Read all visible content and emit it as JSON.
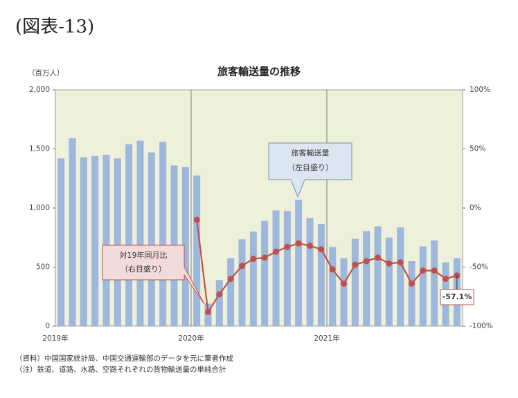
{
  "heading": "(図表-13)",
  "chart_data": {
    "type": "bar_line",
    "title": "旅客輸送量の推移",
    "y_label": "（百万人）",
    "categories": [
      "2019年",
      null,
      null,
      null,
      null,
      null,
      null,
      null,
      null,
      null,
      null,
      null,
      "2020年",
      null,
      null,
      null,
      null,
      null,
      null,
      null,
      null,
      null,
      null,
      null,
      "2021年",
      null,
      null,
      null,
      null,
      null,
      null,
      null,
      null,
      null,
      null,
      null
    ],
    "series": [
      {
        "name": "旅客輸送量",
        "type": "bar",
        "color": "#9db8dc",
        "values": [
          1420,
          1590,
          1430,
          1440,
          1450,
          1420,
          1540,
          1570,
          1470,
          1560,
          1360,
          1345,
          1275,
          190,
          390,
          575,
          735,
          800,
          890,
          980,
          975,
          1070,
          915,
          865,
          670,
          575,
          740,
          805,
          845,
          750,
          835,
          550,
          675,
          725,
          540,
          575
        ]
      },
      {
        "name": "対19年同月比",
        "type": "line",
        "axis": "y2",
        "color": "#c0504d",
        "values": [
          null,
          null,
          null,
          null,
          null,
          null,
          null,
          null,
          null,
          null,
          null,
          null,
          -10,
          -88,
          -73,
          -60,
          -49,
          -43,
          -42,
          -37,
          -33,
          -30,
          -32,
          -35,
          -52,
          -64,
          -48,
          -45,
          -42,
          -47,
          -46,
          -64,
          -53,
          -53,
          -60,
          -57.1
        ],
        "value_labels": [
          null,
          null,
          null,
          null,
          null,
          null,
          null,
          null,
          null,
          null,
          null,
          null,
          null,
          null,
          null,
          null,
          null,
          null,
          null,
          null,
          null,
          null,
          null,
          null,
          null,
          null,
          null,
          null,
          null,
          null,
          null,
          null,
          null,
          null,
          null,
          "-57.1%"
        ]
      }
    ],
    "annotations": [
      [
        "旅客輸送量",
        "（左目盛り）"
      ],
      [
        "対19年同月比",
        "（右目盛り）"
      ]
    ],
    "ylim": [
      0,
      2000
    ],
    "yticks": [
      0,
      500,
      {
        "value": 1000,
        "label": "1,000"
      },
      {
        "value": 1500,
        "label": "1,500"
      },
      {
        "value": 2000,
        "label": "2,000"
      }
    ],
    "y2lim": [
      -100,
      100
    ],
    "y2ticks": [
      {
        "value": -100,
        "label": "-100%"
      },
      {
        "value": -50,
        "label": "-50%"
      },
      {
        "value": 0,
        "label": "0%"
      },
      {
        "value": 50,
        "label": "50%"
      },
      {
        "value": 100,
        "label": "100%"
      }
    ],
    "background": "#eef0d9"
  },
  "notes": [
    "（資料）中国国家統計局、中国交通運輸部のデータを元に筆者作成",
    "（注）鉄道、道路、水路、空路それぞれの貨物輸送量の単純合計"
  ]
}
